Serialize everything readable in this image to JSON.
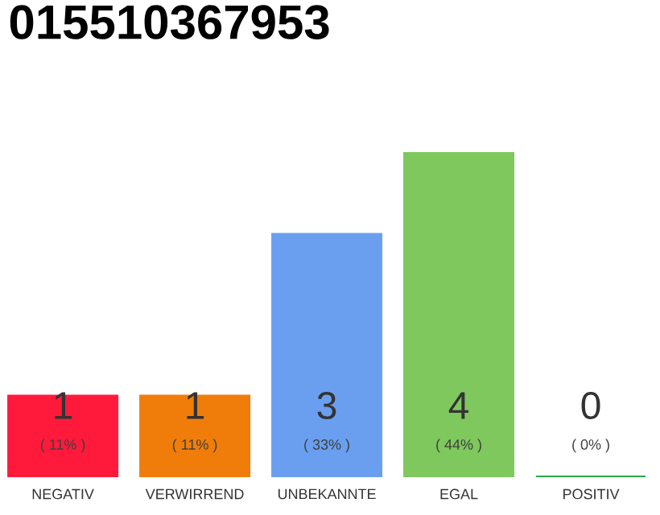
{
  "chart_data": {
    "type": "bar",
    "title": "015510367953",
    "categories": [
      "NEGATIV",
      "VERWIRREND",
      "UNBEKANNTE",
      "EGAL",
      "POSITIV"
    ],
    "values": [
      11,
      11,
      33,
      44,
      0
    ],
    "colors": [
      "#ff1a3c",
      "#f07d0a",
      "#6a9fef",
      "#7ec85e",
      "#2aa847"
    ],
    "value_labels": [
      "( 11% )",
      "( 11% )",
      "( 33% )",
      "( 44% )",
      "( 0% )"
    ],
    "annotations": [
      "1",
      "1",
      "3",
      "4",
      "0"
    ],
    "tick_labels": "x"
  }
}
